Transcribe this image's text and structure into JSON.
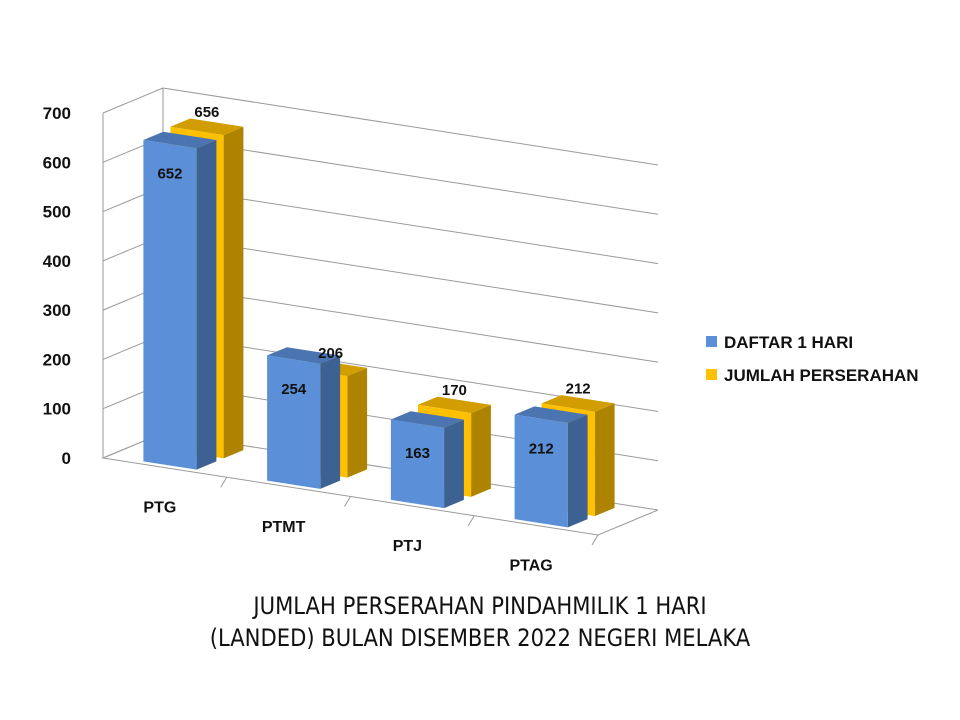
{
  "chart_data": {
    "type": "bar",
    "categories": [
      "PTG",
      "PTMT",
      "PTJ",
      "PTAG"
    ],
    "series": [
      {
        "name": "DAFTAR 1 HARI",
        "values": [
          652,
          254,
          163,
          212
        ],
        "color": "#5B8FD8"
      },
      {
        "name": "JUMLAH PERSERAHAN",
        "values": [
          656,
          206,
          170,
          212
        ],
        "color": "#FFC000"
      }
    ],
    "ylim": [
      0,
      700
    ],
    "yticks": [
      0,
      100,
      200,
      300,
      400,
      500,
      600,
      700
    ],
    "title_line1": "JUMLAH PERSERAHAN PINDAHMILIK 1 HARI",
    "title_line2": "(LANDED) BULAN DISEMBER 2022 NEGERI MELAKA",
    "xlabel": "",
    "ylabel": "",
    "grid": true,
    "legend_position": "right",
    "style": "3d-clustered-column"
  }
}
